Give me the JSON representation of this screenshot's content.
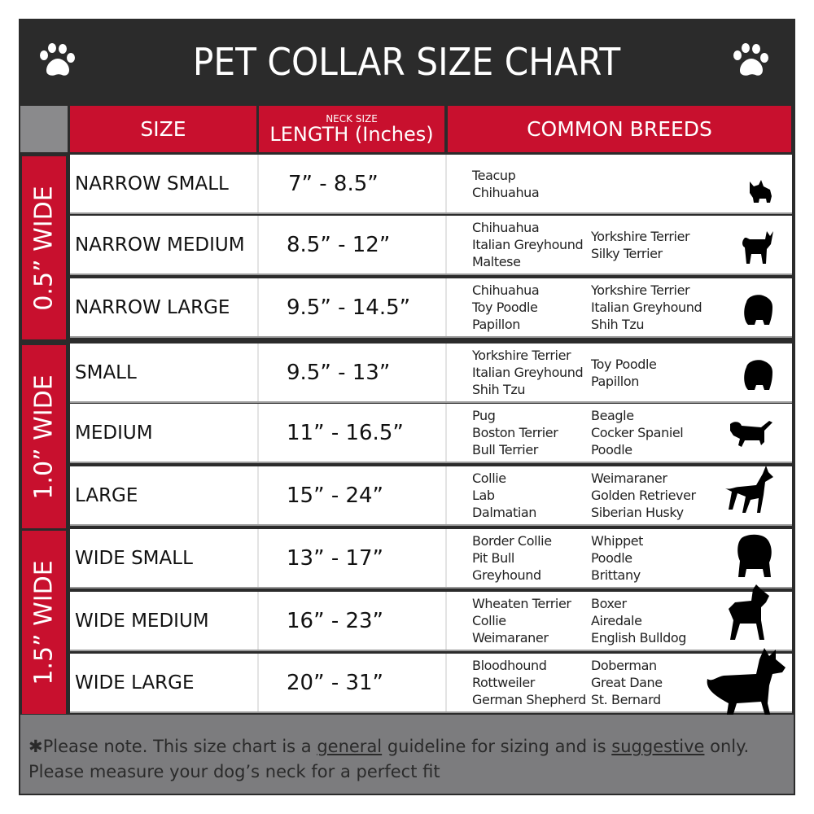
{
  "title": "PET COLLAR SIZE CHART",
  "headers": {
    "size": "SIZE",
    "neck_small": "NECK SIZE",
    "length": "LENGTH (Inches)",
    "breeds": "COMMON BREEDS"
  },
  "colors": {
    "red": "#c8102e",
    "dark": "#2b2b2b",
    "gray": "#7c7c7e"
  },
  "groups": [
    {
      "label": "0.5” WIDE",
      "rows": [
        {
          "size": "NARROW SMALL",
          "length": "7” - 8.5”",
          "col1": [
            "Teacup",
            "Chihuahua"
          ],
          "col2": [],
          "icon": "yorkie-silhouette-icon"
        },
        {
          "size": "NARROW MEDIUM",
          "length": "8.5” - 12”",
          "col1": [
            "Chihuahua",
            "Italian Greyhound",
            "Maltese"
          ],
          "col2": [
            "Yorkshire Terrier",
            "Silky Terrier"
          ],
          "icon": "chihuahua-silhouette-icon"
        },
        {
          "size": "NARROW LARGE",
          "length": "9.5” - 14.5”",
          "col1": [
            "Chihuahua",
            "Toy Poodle",
            "Papillon"
          ],
          "col2": [
            "Yorkshire Terrier",
            "Italian Greyhound",
            "Shih Tzu"
          ],
          "icon": "pomeranian-silhouette-icon"
        }
      ]
    },
    {
      "label": "1.0” WIDE",
      "rows": [
        {
          "size": "SMALL",
          "length": "9.5” - 13”",
          "col1": [
            "Yorkshire Terrier",
            "Italian Greyhound",
            "Shih Tzu"
          ],
          "col2": [
            "Toy Poodle",
            "Papillon"
          ],
          "icon": "pomeranian-silhouette-icon"
        },
        {
          "size": "MEDIUM",
          "length": "11” - 16.5”",
          "col1": [
            "Pug",
            "Boston Terrier",
            "Bull Terrier"
          ],
          "col2": [
            "Beagle",
            "Cocker Spaniel",
            "Poodle"
          ],
          "icon": "dachshund-silhouette-icon"
        },
        {
          "size": "LARGE",
          "length": "15” - 24”",
          "col1": [
            "Collie",
            "Lab",
            "Dalmatian"
          ],
          "col2": [
            "Weimaraner",
            "Golden Retriever",
            "Siberian Husky"
          ],
          "icon": "shepherd-silhouette-icon"
        }
      ]
    },
    {
      "label": "1.5” WIDE",
      "rows": [
        {
          "size": "WIDE SMALL",
          "length": "13” - 17”",
          "col1": [
            "Border Collie",
            "Pit Bull",
            "Greyhound"
          ],
          "col2": [
            "Whippet",
            "Poodle",
            "Brittany"
          ],
          "icon": "bulldog-silhouette-icon"
        },
        {
          "size": "WIDE MEDIUM",
          "length": "16” - 23”",
          "col1": [
            "Wheaten Terrier",
            "Collie",
            "Weimaraner"
          ],
          "col2": [
            "Boxer",
            "Airedale",
            "English Bulldog"
          ],
          "icon": "pitbull-silhouette-icon"
        },
        {
          "size": "WIDE LARGE",
          "length": "20” - 31”",
          "col1": [
            "Bloodhound",
            "Rottweiler",
            "German Shepherd"
          ],
          "col2": [
            "Doberman",
            "Great Dane",
            "St. Bernard"
          ],
          "icon": "doberman-silhouette-icon"
        }
      ]
    }
  ],
  "footer": {
    "p1": "✱Please note. This size chart is a ",
    "u1": "general",
    "p2": " guideline for sizing and is ",
    "u2": "suggestive",
    "p3": " only.",
    "line2": "Please measure your dog’s neck for a perfect fit"
  }
}
